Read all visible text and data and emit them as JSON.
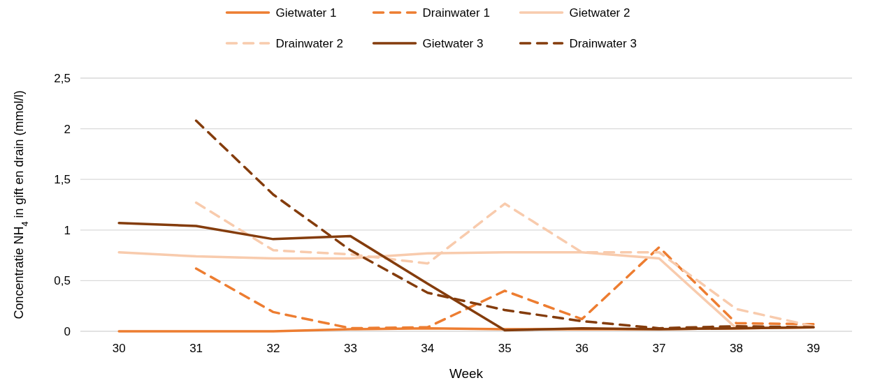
{
  "chart_data": {
    "type": "line",
    "xlabel": "Week",
    "ylabel": "Concentratie NH$_{4}$ in gift en drain (mmol/l)",
    "categories": [
      "30",
      "31",
      "32",
      "33",
      "34",
      "35",
      "36",
      "37",
      "38",
      "39"
    ],
    "ylim": [
      0,
      2.5
    ],
    "yticks": [
      0,
      {
        "value": 0.5,
        "label": "0,5"
      },
      1,
      {
        "value": 1.5,
        "label": "1,5"
      },
      2,
      {
        "value": 2.5,
        "label": "2,5"
      }
    ],
    "grid": "y",
    "legend": "top",
    "series": [
      {
        "name": "Gietwater 1",
        "color": "#ed7d31",
        "line_style": "solid",
        "values": [
          0,
          0,
          0,
          0.02,
          0.03,
          0.02,
          0.02,
          0.02,
          0.03,
          0.04
        ]
      },
      {
        "name": "Drainwater 1",
        "color": "#ed7d31",
        "line_style": "dashed",
        "values": [
          null,
          0.62,
          0.19,
          0.03,
          0.04,
          0.4,
          0.12,
          0.83,
          0.08,
          0.07
        ]
      },
      {
        "name": "Gietwater 2",
        "color": "#f8cbad",
        "line_style": "solid",
        "values": [
          0.78,
          0.74,
          0.72,
          0.72,
          0.77,
          0.78,
          0.78,
          0.72,
          0.03,
          0.04
        ]
      },
      {
        "name": "Drainwater 2",
        "color": "#f8cbad",
        "line_style": "dashed",
        "values": [
          null,
          1.27,
          0.8,
          0.76,
          0.67,
          1.26,
          0.78,
          0.78,
          0.22,
          0.05
        ]
      },
      {
        "name": "Gietwater 3",
        "color": "#843c0c",
        "line_style": "solid",
        "values": [
          1.07,
          1.04,
          0.91,
          0.94,
          0.47,
          0.01,
          0.03,
          0.02,
          0.03,
          0.04
        ]
      },
      {
        "name": "Drainwater 3",
        "color": "#843c0c",
        "line_style": "dashed",
        "values": [
          null,
          2.08,
          1.35,
          0.8,
          0.38,
          0.21,
          0.1,
          0.03,
          0.05,
          0.04
        ]
      }
    ]
  }
}
